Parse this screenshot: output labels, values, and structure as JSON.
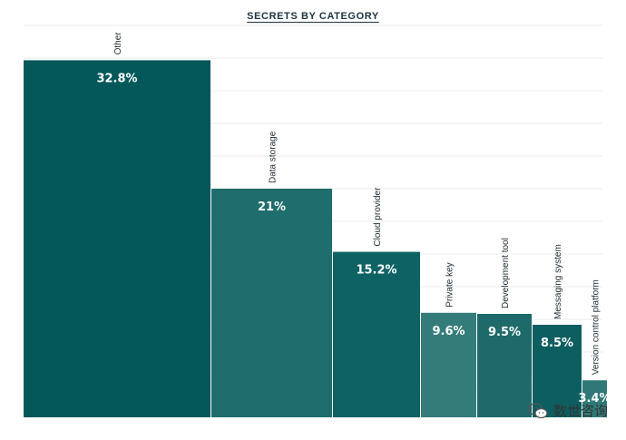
{
  "chart_data": {
    "type": "bar",
    "title": "SECRETS BY CATEGORY",
    "categories": [
      "Other",
      "Data storage",
      "Cloud provider",
      "Private key",
      "Development tool",
      "Messaging system",
      "Version control platform"
    ],
    "values": [
      32.8,
      21,
      15.2,
      9.6,
      9.5,
      8.5,
      3.4
    ],
    "value_labels": [
      "32.8%",
      "21%",
      "15.2%",
      "9.6%",
      "9.5%",
      "8.5%",
      "3.4%"
    ],
    "colors": [
      "#04585a",
      "#1f6d6c",
      "#0d6264",
      "#347c7a",
      "#1e6a6a",
      "#0d5e60",
      "#2f7877"
    ],
    "ylim": [
      0,
      36
    ],
    "grid": true,
    "legend": "none",
    "bar_width": "proportional to value"
  },
  "watermark": {
    "text": "数世咨询",
    "icon": "wechat-icon"
  }
}
